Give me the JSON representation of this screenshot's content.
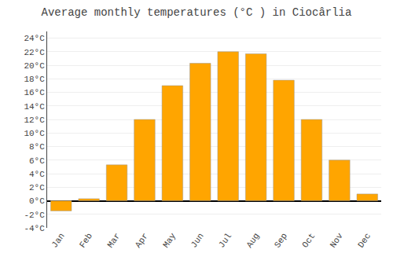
{
  "chart_data": {
    "type": "bar",
    "title": "Average monthly temperatures (°C ) in Ciocârlia",
    "categories": [
      "Jan",
      "Feb",
      "Mar",
      "Apr",
      "May",
      "Jun",
      "Jul",
      "Aug",
      "Sep",
      "Oct",
      "Nov",
      "Dec"
    ],
    "values": [
      -1.5,
      0.3,
      5.3,
      12.0,
      17.0,
      20.3,
      22.0,
      21.7,
      17.8,
      12.0,
      6.0,
      1.0
    ],
    "color": "#FFA500",
    "ylim": [
      -4,
      25
    ],
    "yticks": [
      {
        "value": -4,
        "label": "-4°C"
      },
      {
        "value": -2,
        "label": "-2°C"
      },
      {
        "value": 0,
        "label": "0°C"
      },
      {
        "value": 2,
        "label": "2°C"
      },
      {
        "value": 4,
        "label": "4°C"
      },
      {
        "value": 6,
        "label": "6°C"
      },
      {
        "value": 8,
        "label": "8°C"
      },
      {
        "value": 10,
        "label": "10°C"
      },
      {
        "value": 12,
        "label": "12°C"
      },
      {
        "value": 14,
        "label": "14°C"
      },
      {
        "value": 16,
        "label": "16°C"
      },
      {
        "value": 18,
        "label": "18°C"
      },
      {
        "value": 20,
        "label": "20°C"
      },
      {
        "value": 22,
        "label": "22°C"
      },
      {
        "value": 24,
        "label": "24°C"
      }
    ],
    "grid": true
  }
}
